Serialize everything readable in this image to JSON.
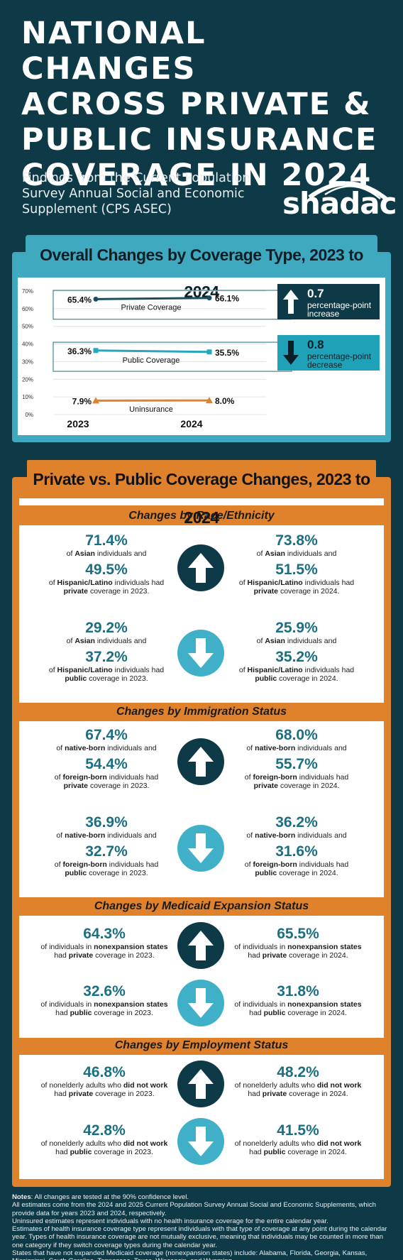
{
  "header": {
    "title_lines": [
      "NATIONAL CHANGES",
      "ACROSS PRIVATE &",
      "PUBLIC INSURANCE",
      "COVERAGE IN 2024"
    ],
    "subtitle": "Findings from the Current Population Survey Annual Social and Economic Supplement (CPS ASEC)",
    "logo": "shadac"
  },
  "colors": {
    "navy": "#0e3a47",
    "teal": "#3fa9c0",
    "orange": "#e0822c",
    "line_teal": "#1b6f82"
  },
  "section1": {
    "title": "Overall Changes by Coverage Type, 2023 to 2024",
    "chart_data": {
      "type": "line",
      "x": [
        "2023",
        "2024"
      ],
      "ylim": [
        0,
        70
      ],
      "yticks": [
        "0%",
        "10%",
        "20%",
        "30%",
        "40%",
        "50%",
        "60%",
        "70%"
      ],
      "series": [
        {
          "name": "Private Coverage",
          "values": [
            65.4,
            66.1
          ],
          "labels": [
            "65.4%",
            "66.1%"
          ],
          "color": "#1b4f5e"
        },
        {
          "name": "Public Coverage",
          "values": [
            36.3,
            35.5
          ],
          "labels": [
            "36.3%",
            "35.5%"
          ],
          "color": "#2aa5bd"
        },
        {
          "name": "Uninsurance",
          "values": [
            7.9,
            8.0
          ],
          "labels": [
            "7.9%",
            "8.0%"
          ],
          "color": "#e0822c"
        }
      ]
    },
    "callout_up": {
      "num": "0.7",
      "text": "percentage-point increase"
    },
    "callout_down": {
      "num": "0.8",
      "text": "percentage-point decrease"
    }
  },
  "section2": {
    "title": "Private vs. Public Coverage Changes, 2023 to 2024",
    "race": {
      "head": "Changes by Race/Ethnicity",
      "p23a": "71.4%",
      "p23b": "49.5%",
      "p24a": "73.8%",
      "p24b": "51.5%",
      "u23a": "29.2%",
      "u23b": "37.2%",
      "u24a": "25.9%",
      "u24b": "35.2%",
      "t_of": "of",
      "g1": "Asian",
      "t_and": "individuals and",
      "g2": "Hispanic/Latino",
      "t_had": "individuals had",
      "priv": "private",
      "pub": "public",
      "y23": "coverage in 2023.",
      "y24": "coverage in 2024."
    },
    "immig": {
      "head": "Changes by Immigration Status",
      "p23a": "67.4%",
      "p23b": "54.4%",
      "p24a": "68.0%",
      "p24b": "55.7%",
      "u23a": "36.9%",
      "u23b": "32.7%",
      "u24a": "36.2%",
      "u24b": "31.6%",
      "t_of": "of",
      "g1": "native-born",
      "t_and": "individuals and",
      "g2": "foreign-born",
      "t_had": "individuals had",
      "priv": "private",
      "pub": "public",
      "y23": "coverage in 2023.",
      "y24": "coverage in 2024."
    },
    "medicaid": {
      "head": "Changes by Medicaid Expansion Status",
      "p23": "64.3%",
      "p24": "65.5%",
      "u23": "32.6%",
      "u24": "31.8%",
      "t_of": "of individuals in",
      "g": "nonexpansion states",
      "t_had": "had",
      "priv": "private",
      "pub": "public",
      "y23": "coverage in 2023.",
      "y24": "coverage in 2024."
    },
    "employ": {
      "head": "Changes by Employment Status",
      "p23": "46.8%",
      "p24": "48.2%",
      "u23": "42.8%",
      "u24": "41.5%",
      "t_of": "of nonelderly adults who",
      "g": "did not work",
      "t_had": "had",
      "priv": "private",
      "pub": "public",
      "y23": "coverage in 2023.",
      "y24": "coverage in 2024."
    }
  },
  "notes": {
    "label": "Notes",
    "line1": ": All changes are tested at the 90% confidence level.",
    "line2": "All estimates come from the 2024 and 2025 Current Population Survey Annual Social and Economic Supplements, which provide data for years 2023 and 2024, respectively.",
    "line3": "Uninsured estimates represent individuals with no health insurance coverage for the entire calendar year.",
    "line4": "Estimates of health insurance coverage type represent individuals with that type of coverage at any point during the calendar year. Types of health insurance coverage are not mutually exclusive, meaning that individuals may be counted in more than one category if they switch coverage types during the calendar year.",
    "line5": "States that have not expanded Medicaid coverage (nonexpansion states) include: Alabama, Florida, Georgia, Kansas, Mississippi, South Carolina, Tennessee, Texas, Wisconsin, and Wyoming"
  }
}
